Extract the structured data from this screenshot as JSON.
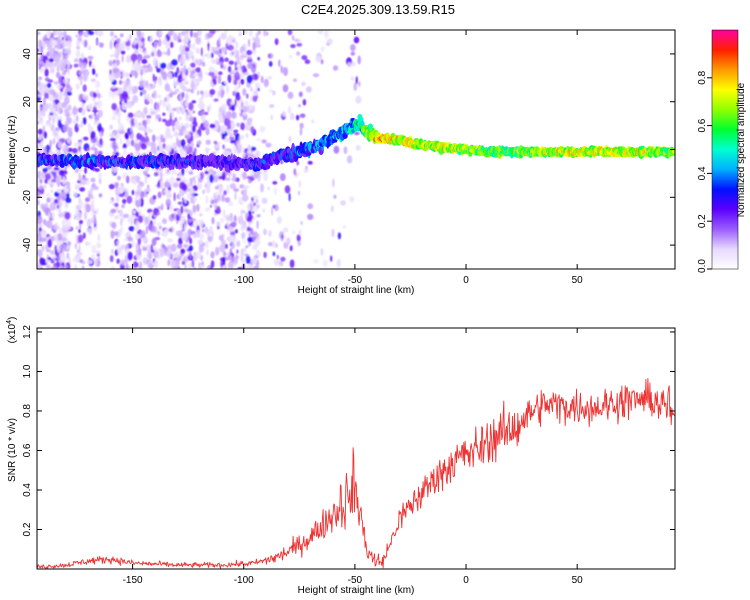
{
  "title": "C2E4.2025.309.13.59.R15",
  "chart_data": [
    {
      "type": "heatmap",
      "xlabel": "Height of straight line (km)",
      "ylabel": "Frequency (Hz)",
      "xlim": [
        -193,
        94
      ],
      "ylim": [
        -50,
        50
      ],
      "xticks": [
        -150,
        -100,
        -50,
        0,
        50
      ],
      "yticks": [
        -40,
        -20,
        0,
        20,
        40
      ],
      "colorbar": {
        "label": "Normalized spectral amplitude",
        "ticks": [
          0.0,
          0.2,
          0.4,
          0.6,
          0.8
        ],
        "range": [
          0,
          1
        ],
        "stops": [
          "#ffffff",
          "#e6d8ff",
          "#9b5cff",
          "#5a00ff",
          "#0010ff",
          "#00b0ff",
          "#00ffd0",
          "#00ff30",
          "#90ff00",
          "#ffff00",
          "#ff9900",
          "#ff2000",
          "#ff00a0"
        ]
      },
      "ridge": {
        "x": [
          -190,
          -175,
          -160,
          -140,
          -120,
          -100,
          -92,
          -85,
          -75,
          -65,
          -58,
          -52,
          -48,
          -44,
          -40,
          -30,
          -20,
          -10,
          0,
          10,
          20,
          40,
          60,
          80,
          94
        ],
        "y": [
          -4,
          -5,
          -5,
          -5,
          -5,
          -6,
          -6,
          -3,
          -1,
          2,
          6,
          9,
          11,
          7,
          5,
          4,
          2,
          1,
          0,
          -1,
          -1,
          -1,
          -1,
          -1,
          -1
        ],
        "amplitude": [
          0.3,
          0.35,
          0.3,
          0.3,
          0.25,
          0.25,
          0.3,
          0.3,
          0.35,
          0.4,
          0.45,
          0.45,
          0.5,
          0.7,
          0.8,
          0.75,
          0.7,
          0.7,
          0.65,
          0.6,
          0.62,
          0.7,
          0.72,
          0.72,
          0.6
        ]
      }
    },
    {
      "type": "line",
      "xlabel": "Height of straight line (km)",
      "ylabel": "SNR (10 * v/v)",
      "scale_label_base": "(x10",
      "scale_label_exp": "4",
      "scale_label_close": ")",
      "xlim": [
        -193,
        94
      ],
      "ylim": [
        0,
        1.22
      ],
      "xticks": [
        -150,
        -100,
        -50,
        0,
        50
      ],
      "yticks": [
        0.2,
        0.4,
        0.6,
        0.8,
        1.0,
        1.2
      ],
      "ytick_labels": [
        "0.2",
        "0.4",
        "0.6",
        "0.8",
        "1.0",
        "1.2"
      ],
      "color": "#ee3333",
      "series": [
        {
          "name": "SNR",
          "x": [
            -193,
            -180,
            -170,
            -160,
            -150,
            -130,
            -110,
            -95,
            -85,
            -78,
            -70,
            -62,
            -56,
            -52,
            -50,
            -48,
            -45,
            -42,
            -38,
            -35,
            -30,
            -25,
            -20,
            -15,
            -10,
            -5,
            0,
            5,
            10,
            15,
            20,
            25,
            30,
            35,
            40,
            50,
            60,
            70,
            80,
            85,
            90,
            92,
            93,
            94
          ],
          "y": [
            0.01,
            0.02,
            0.04,
            0.05,
            0.03,
            0.02,
            0.02,
            0.03,
            0.06,
            0.1,
            0.16,
            0.25,
            0.33,
            0.38,
            0.45,
            0.3,
            0.12,
            0.05,
            0.03,
            0.1,
            0.25,
            0.32,
            0.38,
            0.45,
            0.5,
            0.55,
            0.58,
            0.6,
            0.65,
            0.68,
            0.7,
            0.75,
            0.8,
            0.83,
            0.83,
            0.82,
            0.82,
            0.85,
            0.86,
            0.85,
            0.82,
            0.78,
            0.75,
            0.8
          ]
        }
      ]
    }
  ]
}
